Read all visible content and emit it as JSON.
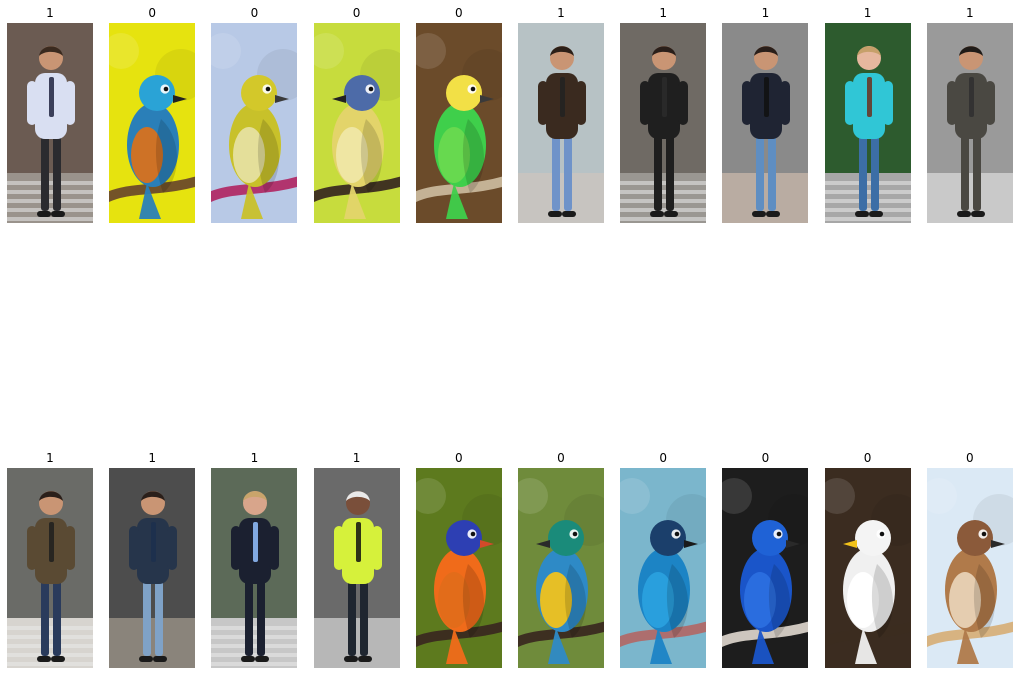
{
  "panels": [
    {
      "label": "1",
      "subject": "person-walking",
      "palette": {
        "bg": "#6b5b52",
        "ground": "#9a938c",
        "top": "#d9dff2",
        "bottom": "#2b2b2f",
        "accent": "#1f2340",
        "skin": "#c99574",
        "hair": "#3a2a1f"
      }
    },
    {
      "label": "0",
      "subject": "bird",
      "palette": {
        "bg": "#e6e30f",
        "body": "#2a7fb8",
        "belly": "#d7721e",
        "head": "#2aa3d6",
        "beak": "#222222",
        "perch": "#6d4b2a"
      }
    },
    {
      "label": "0",
      "subject": "bird",
      "palette": {
        "bg": "#b8c9e6",
        "body": "#c8c12a",
        "belly": "#e6e0a0",
        "head": "#d3c82a",
        "beak": "#3a3a3a",
        "perch": "#b02c67"
      }
    },
    {
      "label": "0",
      "subject": "bird",
      "palette": {
        "bg": "#c7dc3d",
        "body": "#e3d46a",
        "belly": "#efe7a6",
        "head": "#4d6ba8",
        "beak": "#222222",
        "perch": "#3a2a20"
      }
    },
    {
      "label": "0",
      "subject": "bird",
      "palette": {
        "bg": "#6b4b2a",
        "body": "#3fcf4b",
        "belly": "#69d94f",
        "head": "#f2e046",
        "beak": "#3a3a3a",
        "perch": "#c9b79b"
      }
    },
    {
      "label": "1",
      "subject": "person-walking",
      "palette": {
        "bg": "#b7c2c5",
        "ground": "#c7c4c0",
        "top": "#3a2a1f",
        "bottom": "#6f93c9",
        "accent": "#222222",
        "skin": "#c99574",
        "hair": "#2b1f18"
      }
    },
    {
      "label": "1",
      "subject": "person-walking",
      "palette": {
        "bg": "#6f6a64",
        "ground": "#9a9792",
        "top": "#1f1f1f",
        "bottom": "#1f1f1f",
        "accent": "#2c2c2c",
        "skin": "#c99574",
        "hair": "#2a1f1a"
      }
    },
    {
      "label": "1",
      "subject": "person-walking",
      "palette": {
        "bg": "#8a8a8a",
        "ground": "#b9aca2",
        "top": "#1f2433",
        "bottom": "#5f8ec2",
        "accent": "#111111",
        "skin": "#c99574",
        "hair": "#2a1f1a"
      }
    },
    {
      "label": "1",
      "subject": "person-walking",
      "palette": {
        "bg": "#2d5b2e",
        "ground": "#a7a7a7",
        "top": "#30c6d6",
        "bottom": "#3c6ea6",
        "accent": "#6b2f1f",
        "skin": "#e6b79e",
        "hair": "#c6a06a"
      }
    },
    {
      "label": "1",
      "subject": "person-walking",
      "palette": {
        "bg": "#9a9a9a",
        "ground": "#c9c9c9",
        "top": "#4a4842",
        "bottom": "#4a4842",
        "accent": "#2f2f2f",
        "skin": "#c99574",
        "hair": "#1f1b18"
      }
    },
    {
      "label": "1",
      "subject": "person-walking",
      "palette": {
        "bg": "#6a6b67",
        "ground": "#d7d4cf",
        "top": "#5a4a33",
        "bottom": "#2a3b5c",
        "accent": "#1f1f1f",
        "skin": "#c99574",
        "hair": "#2a1f1a"
      }
    },
    {
      "label": "1",
      "subject": "person-walking",
      "palette": {
        "bg": "#4d4d4d",
        "ground": "#8a847b",
        "top": "#26354b",
        "bottom": "#7fa2c7",
        "accent": "#1c2f4d",
        "skin": "#c99574",
        "hair": "#2a1f1a"
      }
    },
    {
      "label": "1",
      "subject": "person-walking",
      "palette": {
        "bg": "#5c6a58",
        "ground": "#c7c7c7",
        "top": "#1b2030",
        "bottom": "#1b2030",
        "accent": "#93c1ff",
        "skin": "#d8a58b",
        "hair": "#c9a46b"
      }
    },
    {
      "label": "1",
      "subject": "person-walking",
      "palette": {
        "bg": "#6a6a6a",
        "ground": "#b7b7b7",
        "top": "#d6f13b",
        "bottom": "#1f2630",
        "accent": "#111111",
        "skin": "#7a4f3a",
        "hair": "#e9e9e9"
      }
    },
    {
      "label": "0",
      "subject": "bird",
      "palette": {
        "bg": "#5d7a1e",
        "body": "#f06b1a",
        "belly": "#e06d1a",
        "head": "#2d3fb3",
        "beak": "#d34a2a",
        "perch": "#3a2a20"
      }
    },
    {
      "label": "0",
      "subject": "bird",
      "palette": {
        "bg": "#6f8b3b",
        "body": "#2e8ac6",
        "belly": "#f0c21d",
        "head": "#1a8b7a",
        "beak": "#2a2a2a",
        "perch": "#3a2a20"
      }
    },
    {
      "label": "0",
      "subject": "bird",
      "palette": {
        "bg": "#7bb6cc",
        "body": "#1c84c5",
        "belly": "#2aa0de",
        "head": "#1b3f6b",
        "beak": "#1a1a1a",
        "perch": "#b06a68"
      }
    },
    {
      "label": "0",
      "subject": "bird",
      "palette": {
        "bg": "#1d1d1d",
        "body": "#1a55c9",
        "belly": "#2b6fe0",
        "head": "#1f62d6",
        "beak": "#2a2a2a",
        "perch": "#d7d0c7"
      }
    },
    {
      "label": "0",
      "subject": "bird",
      "palette": {
        "bg": "#3b2c20",
        "body": "#f0f0f0",
        "belly": "#ffffff",
        "head": "#f4f4f4",
        "beak": "#f2c21a",
        "perch": "#3b2c20"
      }
    },
    {
      "label": "0",
      "subject": "bird",
      "palette": {
        "bg": "#dbe9f5",
        "body": "#b07a4a",
        "belly": "#e8d2b5",
        "head": "#8b5a3a",
        "beak": "#2a2a2a",
        "perch": "#d7b07a"
      }
    }
  ]
}
